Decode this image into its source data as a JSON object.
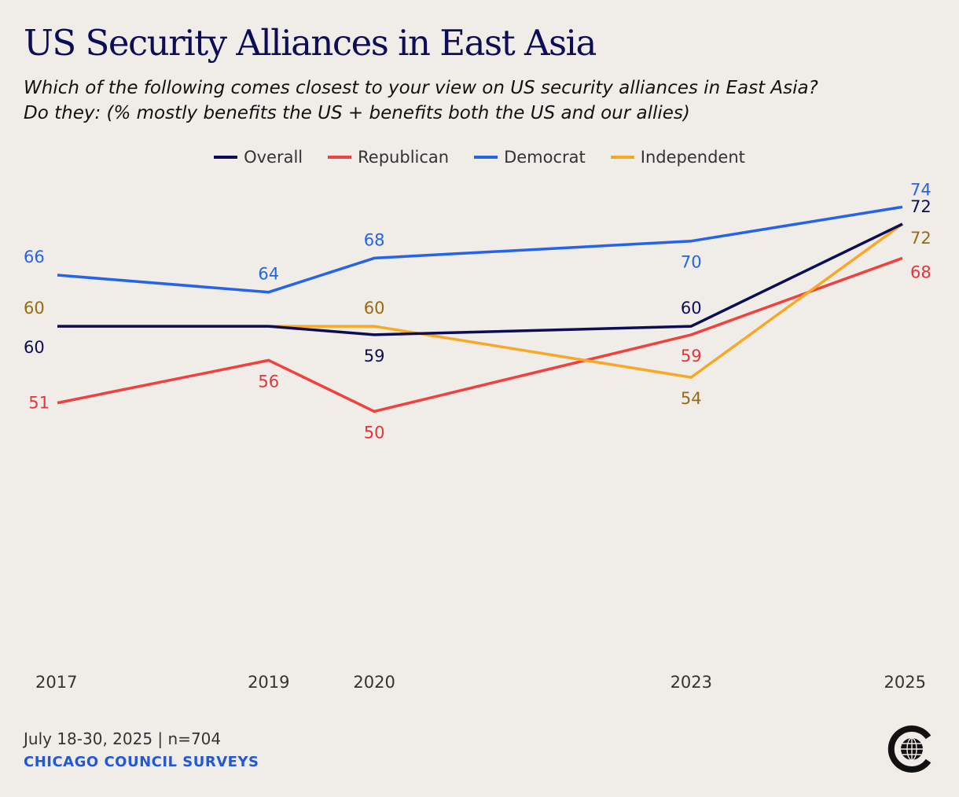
{
  "title": "US Security Alliances in East Asia",
  "subtitle_line1": "Which of the following comes closest to your view on US security alliances in East Asia?",
  "subtitle_line2": "Do they: (% mostly benefits the US + benefits both the US and our allies)",
  "footer": {
    "date": "July 18-30, 2025 | n=704",
    "source": "CHICAGO COUNCIL SURVEYS"
  },
  "logo_icon": "globe-c-icon",
  "chart_data": {
    "type": "line",
    "title": "US Security Alliances in East Asia",
    "xlabel": "",
    "ylabel": "",
    "x": [
      2017,
      2019,
      2020,
      2023,
      2025
    ],
    "ylim": [
      35,
      78
    ],
    "grid": false,
    "legend_position": "top-center",
    "series": [
      {
        "name": "Overall",
        "color": "#0d0d55",
        "label_color": "#0d0d55",
        "values": [
          60,
          60,
          59,
          60,
          72
        ],
        "label_pos": [
          "below",
          "none",
          "below",
          "above",
          "above"
        ]
      },
      {
        "name": "Republican",
        "color": "#f2403c",
        "label_color": "#e5343a",
        "values": [
          51,
          56,
          50,
          59,
          68
        ],
        "label_pos": [
          "left",
          "below",
          "below",
          "below",
          "right-below"
        ]
      },
      {
        "name": "Democrat",
        "color": "#2563eb",
        "label_color": "#2563eb",
        "values": [
          66,
          64,
          68,
          70,
          74
        ],
        "label_pos": [
          "above",
          "above",
          "above",
          "below",
          "above"
        ]
      },
      {
        "name": "Independent",
        "color": "#f9a825",
        "label_color": "#9a6a0e",
        "values": [
          60,
          60,
          60,
          54,
          72
        ],
        "label_pos": [
          "above",
          "none",
          "above",
          "below",
          "right-below"
        ]
      }
    ]
  }
}
